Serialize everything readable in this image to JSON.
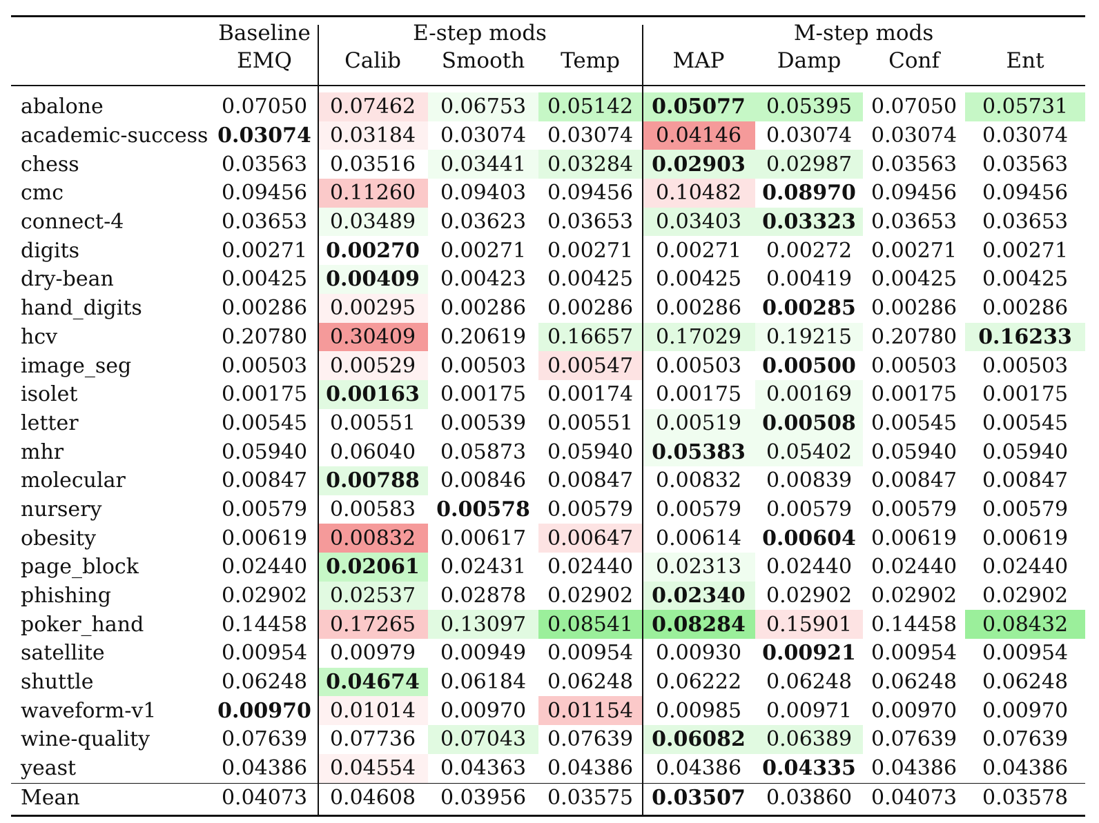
{
  "header": {
    "baseline_group": "Baseline",
    "estep_group": "E-step mods",
    "mstep_group": "M-step mods",
    "columns": [
      "EMQ",
      "Calib",
      "Smooth",
      "Temp",
      "MAP",
      "Damp",
      "Conf",
      "Ent"
    ]
  },
  "colors": {
    "red_strong": "#f59a9a",
    "red_mid": "#fbc9c9",
    "red_light": "#fde3e3",
    "red_faint": "#fef1f1",
    "green_strong": "#9bef9b",
    "green_mid": "#c6f7c6",
    "green_light": "#e1fae1",
    "green_faint": "#f0fdf0"
  },
  "rows": [
    {
      "name": "abalone",
      "values": [
        "0.07050",
        "0.07462",
        "0.06753",
        "0.05142",
        "0.05077",
        "0.05395",
        "0.07050",
        "0.05731"
      ],
      "bold": 4,
      "shade": [
        "",
        "rl",
        "gf",
        "gm",
        "gm",
        "gm",
        "",
        "gm"
      ]
    },
    {
      "name": "academic-success",
      "values": [
        "0.03074",
        "0.03184",
        "0.03074",
        "0.03074",
        "0.04146",
        "0.03074",
        "0.03074",
        "0.03074"
      ],
      "bold": 0,
      "shade": [
        "",
        "rf",
        "",
        "",
        "rs",
        "",
        "",
        ""
      ]
    },
    {
      "name": "chess",
      "values": [
        "0.03563",
        "0.03516",
        "0.03441",
        "0.03284",
        "0.02903",
        "0.02987",
        "0.03563",
        "0.03563"
      ],
      "bold": 4,
      "shade": [
        "",
        "",
        "gf",
        "gl",
        "gl",
        "gl",
        "",
        ""
      ]
    },
    {
      "name": "cmc",
      "values": [
        "0.09456",
        "0.11260",
        "0.09403",
        "0.09456",
        "0.10482",
        "0.08970",
        "0.09456",
        "0.09456"
      ],
      "bold": 5,
      "shade": [
        "",
        "rm",
        "",
        "",
        "rl",
        "",
        "",
        ""
      ]
    },
    {
      "name": "connect-4",
      "values": [
        "0.03653",
        "0.03489",
        "0.03623",
        "0.03653",
        "0.03403",
        "0.03323",
        "0.03653",
        "0.03653"
      ],
      "bold": 5,
      "shade": [
        "",
        "gf",
        "",
        "",
        "gl",
        "gl",
        "",
        ""
      ]
    },
    {
      "name": "digits",
      "values": [
        "0.00271",
        "0.00270",
        "0.00271",
        "0.00271",
        "0.00271",
        "0.00272",
        "0.00271",
        "0.00271"
      ],
      "bold": 1,
      "shade": [
        "",
        "",
        "",
        "",
        "",
        "",
        "",
        ""
      ]
    },
    {
      "name": "dry-bean",
      "values": [
        "0.00425",
        "0.00409",
        "0.00423",
        "0.00425",
        "0.00425",
        "0.00419",
        "0.00425",
        "0.00425"
      ],
      "bold": 1,
      "shade": [
        "",
        "gf",
        "",
        "",
        "",
        "",
        "",
        ""
      ]
    },
    {
      "name": "hand_digits",
      "values": [
        "0.00286",
        "0.00295",
        "0.00286",
        "0.00286",
        "0.00286",
        "0.00285",
        "0.00286",
        "0.00286"
      ],
      "bold": 5,
      "shade": [
        "",
        "rf",
        "",
        "",
        "",
        "",
        "",
        ""
      ]
    },
    {
      "name": "hcv",
      "values": [
        "0.20780",
        "0.30409",
        "0.20619",
        "0.16657",
        "0.17029",
        "0.19215",
        "0.20780",
        "0.16233"
      ],
      "bold": 7,
      "shade": [
        "",
        "rs",
        "",
        "gl",
        "gl",
        "gf",
        "",
        "gl"
      ]
    },
    {
      "name": "image_seg",
      "values": [
        "0.00503",
        "0.00529",
        "0.00503",
        "0.00547",
        "0.00503",
        "0.00500",
        "0.00503",
        "0.00503"
      ],
      "bold": 5,
      "shade": [
        "",
        "rf",
        "",
        "rl",
        "",
        "",
        "",
        ""
      ]
    },
    {
      "name": "isolet",
      "values": [
        "0.00175",
        "0.00163",
        "0.00175",
        "0.00174",
        "0.00175",
        "0.00169",
        "0.00175",
        "0.00175"
      ],
      "bold": 1,
      "shade": [
        "",
        "gl",
        "",
        "",
        "",
        "gf",
        "",
        ""
      ]
    },
    {
      "name": "letter",
      "values": [
        "0.00545",
        "0.00551",
        "0.00539",
        "0.00551",
        "0.00519",
        "0.00508",
        "0.00545",
        "0.00545"
      ],
      "bold": 5,
      "shade": [
        "",
        "",
        "",
        "",
        "gf",
        "gf",
        "",
        ""
      ]
    },
    {
      "name": "mhr",
      "values": [
        "0.05940",
        "0.06040",
        "0.05873",
        "0.05940",
        "0.05383",
        "0.05402",
        "0.05940",
        "0.05940"
      ],
      "bold": 4,
      "shade": [
        "",
        "",
        "",
        "",
        "gf",
        "gf",
        "",
        ""
      ]
    },
    {
      "name": "molecular",
      "values": [
        "0.00847",
        "0.00788",
        "0.00846",
        "0.00847",
        "0.00832",
        "0.00839",
        "0.00847",
        "0.00847"
      ],
      "bold": 1,
      "shade": [
        "",
        "gl",
        "",
        "",
        "",
        "",
        "",
        ""
      ]
    },
    {
      "name": "nursery",
      "values": [
        "0.00579",
        "0.00583",
        "0.00578",
        "0.00579",
        "0.00579",
        "0.00579",
        "0.00579",
        "0.00579"
      ],
      "bold": 2,
      "shade": [
        "",
        "",
        "",
        "",
        "",
        "",
        "",
        ""
      ]
    },
    {
      "name": "obesity",
      "values": [
        "0.00619",
        "0.00832",
        "0.00617",
        "0.00647",
        "0.00614",
        "0.00604",
        "0.00619",
        "0.00619"
      ],
      "bold": 5,
      "shade": [
        "",
        "rs",
        "",
        "rl",
        "",
        "",
        "",
        ""
      ]
    },
    {
      "name": "page_block",
      "values": [
        "0.02440",
        "0.02061",
        "0.02431",
        "0.02440",
        "0.02313",
        "0.02440",
        "0.02440",
        "0.02440"
      ],
      "bold": 1,
      "shade": [
        "",
        "gm",
        "",
        "",
        "gf",
        "",
        "",
        ""
      ]
    },
    {
      "name": "phishing",
      "values": [
        "0.02902",
        "0.02537",
        "0.02878",
        "0.02902",
        "0.02340",
        "0.02902",
        "0.02902",
        "0.02902"
      ],
      "bold": 4,
      "shade": [
        "",
        "gl",
        "",
        "",
        "gl",
        "",
        "",
        ""
      ]
    },
    {
      "name": "poker_hand",
      "values": [
        "0.14458",
        "0.17265",
        "0.13097",
        "0.08541",
        "0.08284",
        "0.15901",
        "0.14458",
        "0.08432"
      ],
      "bold": 4,
      "shade": [
        "",
        "rm",
        "gl",
        "gs",
        "gs",
        "rl",
        "",
        "gs"
      ]
    },
    {
      "name": "satellite",
      "values": [
        "0.00954",
        "0.00979",
        "0.00949",
        "0.00954",
        "0.00930",
        "0.00921",
        "0.00954",
        "0.00954"
      ],
      "bold": 5,
      "shade": [
        "",
        "",
        "",
        "",
        "",
        "",
        "",
        ""
      ]
    },
    {
      "name": "shuttle",
      "values": [
        "0.06248",
        "0.04674",
        "0.06184",
        "0.06248",
        "0.06222",
        "0.06248",
        "0.06248",
        "0.06248"
      ],
      "bold": 1,
      "shade": [
        "",
        "gm",
        "",
        "",
        "",
        "",
        "",
        ""
      ]
    },
    {
      "name": "waveform-v1",
      "values": [
        "0.00970",
        "0.01014",
        "0.00970",
        "0.01154",
        "0.00985",
        "0.00971",
        "0.00970",
        "0.00970"
      ],
      "bold": 0,
      "shade": [
        "",
        "rf",
        "",
        "rm",
        "",
        "",
        "",
        ""
      ]
    },
    {
      "name": "wine-quality",
      "values": [
        "0.07639",
        "0.07736",
        "0.07043",
        "0.07639",
        "0.06082",
        "0.06389",
        "0.07639",
        "0.07639"
      ],
      "bold": 4,
      "shade": [
        "",
        "",
        "gl",
        "",
        "gl",
        "gl",
        "",
        ""
      ]
    },
    {
      "name": "yeast",
      "values": [
        "0.04386",
        "0.04554",
        "0.04363",
        "0.04386",
        "0.04386",
        "0.04335",
        "0.04386",
        "0.04386"
      ],
      "bold": 5,
      "shade": [
        "",
        "rf",
        "",
        "",
        "",
        "",
        "",
        ""
      ]
    }
  ],
  "mean": {
    "name": "Mean",
    "values": [
      "0.04073",
      "0.04608",
      "0.03956",
      "0.03575",
      "0.03507",
      "0.03860",
      "0.04073",
      "0.03578"
    ],
    "bold": 4
  }
}
